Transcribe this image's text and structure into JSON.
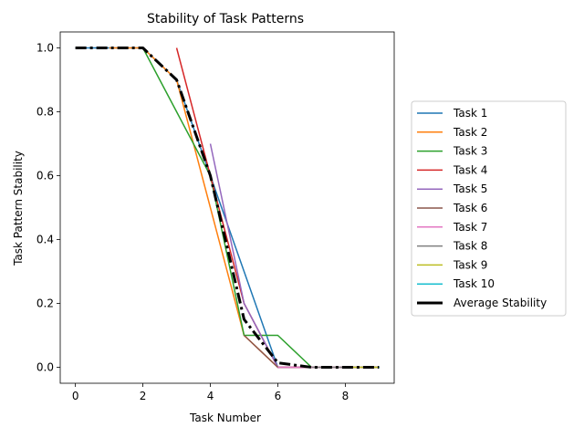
{
  "chart_data": {
    "type": "line",
    "title": "Stability of Task Patterns",
    "xlabel": "Task Number",
    "ylabel": "Task Pattern Stability",
    "xlim": [
      -0.45,
      9.45
    ],
    "ylim": [
      -0.05,
      1.05
    ],
    "xticks": [
      0,
      2,
      4,
      6,
      8
    ],
    "yticks": [
      0.0,
      0.2,
      0.4,
      0.6,
      0.8,
      1.0
    ],
    "grid": false,
    "legend_position": "outside-right",
    "series": [
      {
        "name": "Task 1",
        "color": "#1f77b4",
        "x": [
          0,
          1,
          2,
          3,
          4,
          5,
          6,
          7,
          8,
          9
        ],
        "y": [
          1,
          1,
          1,
          0.9,
          0.6,
          0.3,
          0,
          0,
          0,
          0
        ]
      },
      {
        "name": "Task 2",
        "color": "#ff7f0e",
        "x": [
          1,
          2,
          3,
          4,
          5,
          6,
          7,
          8,
          9
        ],
        "y": [
          1,
          1,
          0.9,
          0.5,
          0.1,
          0,
          0,
          0,
          0
        ]
      },
      {
        "name": "Task 3",
        "color": "#2ca02c",
        "x": [
          2,
          3,
          4,
          5,
          6,
          7,
          8,
          9
        ],
        "y": [
          1,
          0.8,
          0.6,
          0.1,
          0.1,
          0,
          0,
          0
        ]
      },
      {
        "name": "Task 4",
        "color": "#d62728",
        "x": [
          3,
          4,
          5,
          6,
          7,
          8,
          9
        ],
        "y": [
          1,
          0.6,
          0.2,
          0,
          0,
          0,
          0
        ]
      },
      {
        "name": "Task 5",
        "color": "#9467bd",
        "x": [
          4,
          5,
          6,
          7,
          8,
          9
        ],
        "y": [
          0.7,
          0.2,
          0,
          0,
          0,
          0
        ]
      },
      {
        "name": "Task 6",
        "color": "#8c564b",
        "x": [
          5,
          6,
          7,
          8,
          9
        ],
        "y": [
          0.1,
          0,
          0,
          0,
          0
        ]
      },
      {
        "name": "Task 7",
        "color": "#e377c2",
        "x": [
          6,
          7,
          8,
          9
        ],
        "y": [
          0,
          0,
          0,
          0
        ]
      },
      {
        "name": "Task 8",
        "color": "#7f7f7f",
        "x": [
          7,
          8,
          9
        ],
        "y": [
          0,
          0,
          0
        ]
      },
      {
        "name": "Task 9",
        "color": "#bcbd22",
        "x": [
          8,
          9
        ],
        "y": [
          0,
          0
        ]
      },
      {
        "name": "Task 10",
        "color": "#17becf",
        "x": [
          9
        ],
        "y": [
          0
        ]
      }
    ],
    "average": {
      "name": "Average Stability",
      "color": "#000000",
      "style": "dashdot",
      "x": [
        0,
        1,
        2,
        3,
        4,
        5,
        6,
        7,
        8,
        9
      ],
      "y": [
        1,
        1,
        1,
        0.9,
        0.6,
        0.15,
        0.014,
        0,
        0,
        0
      ]
    }
  }
}
